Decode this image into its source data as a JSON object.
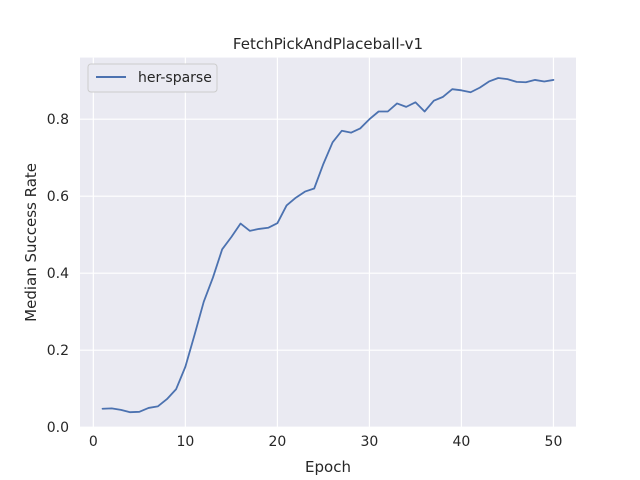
{
  "chart_data": {
    "type": "line",
    "title": "FetchPickAndPlaceball-v1",
    "xlabel": "Epoch",
    "ylabel": "Median Success Rate",
    "xlim": [
      -1.45,
      52.45
    ],
    "ylim": [
      0.0,
      0.96
    ],
    "xticks": [
      0,
      10,
      20,
      30,
      40,
      50
    ],
    "yticks": [
      0.0,
      0.2,
      0.4,
      0.6,
      0.8
    ],
    "xtick_labels": [
      "0",
      "10",
      "20",
      "30",
      "40",
      "50"
    ],
    "ytick_labels": [
      "0.0",
      "0.2",
      "0.4",
      "0.6",
      "0.8"
    ],
    "grid": true,
    "legend_position": "top-left",
    "background": "#eaeaf2",
    "series": [
      {
        "name": "her-sparse",
        "color": "#4c72b0",
        "x": [
          1,
          2,
          3,
          4,
          5,
          6,
          7,
          8,
          9,
          10,
          11,
          12,
          13,
          14,
          15,
          16,
          17,
          18,
          19,
          20,
          21,
          22,
          23,
          24,
          25,
          26,
          27,
          28,
          29,
          30,
          31,
          32,
          33,
          34,
          35,
          36,
          37,
          38,
          39,
          40,
          41,
          42,
          43,
          44,
          45,
          46,
          47,
          48,
          49,
          50
        ],
        "y": [
          0.048,
          0.049,
          0.045,
          0.039,
          0.04,
          0.05,
          0.054,
          0.073,
          0.099,
          0.157,
          0.24,
          0.326,
          0.389,
          0.462,
          0.494,
          0.529,
          0.51,
          0.515,
          0.518,
          0.53,
          0.576,
          0.596,
          0.612,
          0.62,
          0.684,
          0.74,
          0.77,
          0.765,
          0.776,
          0.8,
          0.82,
          0.82,
          0.841,
          0.832,
          0.844,
          0.82,
          0.848,
          0.858,
          0.878,
          0.875,
          0.87,
          0.882,
          0.898,
          0.907,
          0.904,
          0.897,
          0.896,
          0.902,
          0.898,
          0.902
        ]
      }
    ]
  }
}
